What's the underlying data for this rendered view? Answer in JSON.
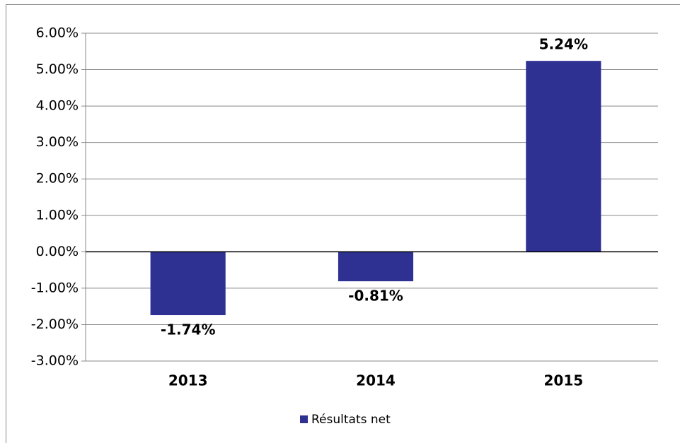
{
  "chart_data": {
    "type": "bar",
    "categories": [
      "2013",
      "2014",
      "2015"
    ],
    "series": [
      {
        "name": "Résultats net",
        "color": "#2e3192",
        "values": [
          -1.74,
          -0.81,
          5.24
        ],
        "value_labels": [
          "-1.74%",
          "-0.81%",
          "5.24%"
        ]
      }
    ],
    "ylim": [
      -3,
      6
    ],
    "yticks": [
      {
        "value": -3,
        "label": "-3.00%"
      },
      {
        "value": -2,
        "label": "-2.00%"
      },
      {
        "value": -1,
        "label": "-1.00%"
      },
      {
        "value": 0,
        "label": "0.00%"
      },
      {
        "value": 1,
        "label": "1.00%"
      },
      {
        "value": 2,
        "label": "2.00%"
      },
      {
        "value": 3,
        "label": "3.00%"
      },
      {
        "value": 4,
        "label": "4.00%"
      },
      {
        "value": 5,
        "label": "5.00%"
      },
      {
        "value": 6,
        "label": "6.00%"
      }
    ],
    "grid": true,
    "legend": "bottom"
  }
}
